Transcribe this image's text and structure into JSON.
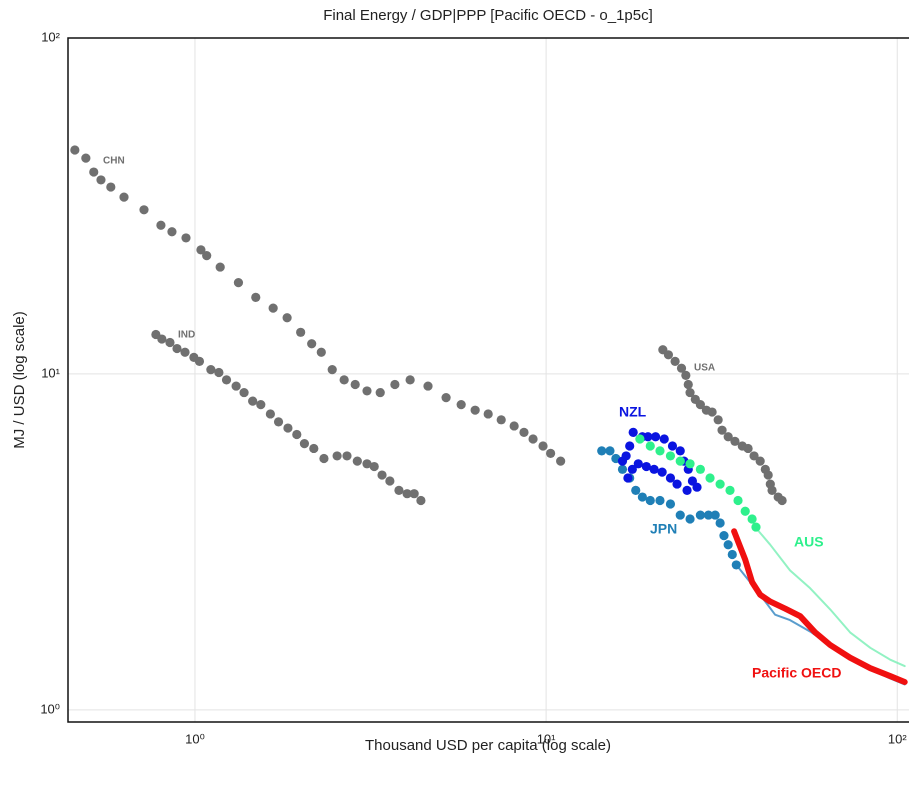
{
  "chart_data": {
    "type": "scatter",
    "title": "Final Energy / GDP|PPP [Pacific OECD - o_1p5c]",
    "x_label": "Thousand USD per capita (log scale)",
    "y_label": "MJ / USD (log scale)",
    "x_log": true,
    "y_log": true,
    "grid": true,
    "xlim": [
      0.435,
      108
    ],
    "ylim": [
      0.92,
      100
    ],
    "xticks": [
      {
        "value": 1,
        "label": "10⁰"
      },
      {
        "value": 10,
        "label": "10¹"
      },
      {
        "value": 100,
        "label": "10²"
      }
    ],
    "yticks": [
      {
        "value": 1,
        "label": "10⁰"
      },
      {
        "value": 10,
        "label": "10¹"
      },
      {
        "value": 100,
        "label": "10²"
      }
    ],
    "series": [
      {
        "mode": "lines",
        "color": "#3d8cc4",
        "line_width": 2,
        "x": [
          34.8,
          38.1,
          42.1,
          44.9,
          49.5,
          56.5,
          64.4,
          73.4,
          83.8,
          95.5,
          105
        ],
        "y": [
          2.7,
          2.4,
          2.1,
          1.92,
          1.85,
          1.71,
          1.56,
          1.41,
          1.32,
          1.24,
          1.19
        ]
      },
      {
        "mode": "lines",
        "color": "#7ff0b8",
        "line_width": 2,
        "x": [
          39.4,
          43.5,
          49.5,
          56.5,
          64.4,
          73.4,
          83.8,
          95.5,
          105
        ],
        "y": [
          3.5,
          3.1,
          2.6,
          2.3,
          1.99,
          1.7,
          1.53,
          1.41,
          1.35
        ]
      },
      {
        "name": "CHN",
        "mode": "markers",
        "color": "#707070",
        "x": [
          0.455,
          0.489,
          0.515,
          0.54,
          0.576,
          0.628,
          0.716,
          0.8,
          0.86,
          0.943,
          1.04,
          1.08,
          1.18,
          1.33,
          1.49,
          1.67,
          1.83,
          2.0,
          2.15,
          2.29,
          2.46,
          2.66,
          2.86,
          3.09,
          3.37,
          3.71,
          4.1,
          4.61,
          5.19,
          5.73,
          6.28,
          6.84,
          7.45,
          8.11,
          8.65,
          9.18,
          9.8,
          10.3,
          11.0
        ],
        "y": [
          46.4,
          43.9,
          39.9,
          37.8,
          36.0,
          33.6,
          30.8,
          27.7,
          26.5,
          25.4,
          23.4,
          22.5,
          20.8,
          18.7,
          16.9,
          15.7,
          14.7,
          13.3,
          12.3,
          11.6,
          10.3,
          9.6,
          9.3,
          8.9,
          8.8,
          9.3,
          9.6,
          9.2,
          8.5,
          8.1,
          7.8,
          7.6,
          7.3,
          7.0,
          6.7,
          6.4,
          6.1,
          5.8,
          5.5
        ]
      },
      {
        "name": "IND",
        "mode": "markers",
        "color": "#707070",
        "x": [
          0.774,
          0.805,
          0.849,
          0.889,
          0.937,
          0.993,
          1.03,
          1.11,
          1.17,
          1.23,
          1.31,
          1.38,
          1.46,
          1.54,
          1.64,
          1.73,
          1.84,
          1.95,
          2.05,
          2.18,
          2.33,
          2.54,
          2.71,
          2.9,
          3.09,
          3.24,
          3.41,
          3.59,
          3.81,
          4.02,
          4.21,
          4.4
        ],
        "y": [
          13.1,
          12.7,
          12.4,
          11.9,
          11.6,
          11.2,
          10.9,
          10.3,
          10.1,
          9.6,
          9.2,
          8.8,
          8.3,
          8.1,
          7.6,
          7.2,
          6.9,
          6.6,
          6.2,
          6.0,
          5.6,
          5.7,
          5.7,
          5.5,
          5.4,
          5.3,
          5.0,
          4.8,
          4.5,
          4.4,
          4.4,
          4.2
        ]
      },
      {
        "name": "USA",
        "mode": "markers",
        "color": "#707070",
        "x": [
          21.5,
          22.3,
          23.3,
          24.3,
          25.0,
          25.4,
          25.7,
          26.6,
          27.5,
          28.6,
          29.7,
          30.9,
          31.7,
          33.0,
          34.5,
          36.2,
          37.6,
          39.1,
          40.7,
          42.1,
          42.9,
          43.5,
          44.0,
          45.8,
          47.0
        ],
        "y": [
          11.8,
          11.4,
          10.9,
          10.4,
          9.9,
          9.3,
          8.8,
          8.4,
          8.1,
          7.8,
          7.7,
          7.3,
          6.8,
          6.5,
          6.3,
          6.1,
          6.0,
          5.7,
          5.5,
          5.2,
          5.0,
          4.7,
          4.5,
          4.3,
          4.2
        ]
      },
      {
        "name": "JPN",
        "mode": "markers",
        "color": "#1f7fb6",
        "x": [
          14.4,
          15.2,
          15.8,
          16.5,
          17.3,
          18.0,
          18.8,
          19.8,
          21.1,
          22.6,
          24.1,
          25.7,
          27.5,
          29.0,
          30.3,
          31.3,
          32.1,
          33.0,
          33.9,
          34.8
        ],
        "y": [
          5.9,
          5.9,
          5.6,
          5.2,
          4.9,
          4.5,
          4.3,
          4.2,
          4.2,
          4.1,
          3.8,
          3.7,
          3.8,
          3.8,
          3.8,
          3.6,
          3.3,
          3.1,
          2.9,
          2.7
        ]
      },
      {
        "name": "NZL",
        "mode": "markers",
        "color": "#0a14e0",
        "x": [
          17.7,
          18.8,
          19.5,
          20.5,
          21.7,
          22.9,
          24.1,
          24.7,
          25.4,
          26.1,
          26.9,
          25.2,
          23.6,
          22.6,
          21.4,
          20.3,
          19.3,
          18.3,
          17.6,
          17.1,
          16.5,
          16.9,
          17.3
        ],
        "y": [
          6.7,
          6.5,
          6.5,
          6.5,
          6.4,
          6.1,
          5.9,
          5.5,
          5.2,
          4.8,
          4.6,
          4.5,
          4.7,
          4.9,
          5.1,
          5.2,
          5.3,
          5.4,
          5.2,
          4.9,
          5.5,
          5.7,
          6.1
        ]
      },
      {
        "name": "AUS",
        "mode": "markers",
        "color": "#2ef08c",
        "x": [
          18.5,
          19.8,
          21.1,
          22.6,
          24.1,
          25.7,
          27.5,
          29.3,
          31.3,
          33.4,
          35.2,
          36.9,
          38.6,
          39.6
        ],
        "y": [
          6.4,
          6.1,
          5.9,
          5.7,
          5.5,
          5.4,
          5.2,
          4.9,
          4.7,
          4.5,
          4.2,
          3.9,
          3.7,
          3.5
        ]
      },
      {
        "name": "Pacific OECD",
        "mode": "lines",
        "color": "#f01010",
        "line_width": 6,
        "x": [
          34.3,
          36.9,
          38.6,
          40.7,
          43.5,
          48.0,
          52.9,
          58.4,
          64.4,
          73.4,
          83.8,
          95.5,
          105
        ],
        "y": [
          3.4,
          2.8,
          2.4,
          2.2,
          2.1,
          2.0,
          1.9,
          1.7,
          1.56,
          1.43,
          1.33,
          1.26,
          1.21
        ]
      }
    ]
  }
}
